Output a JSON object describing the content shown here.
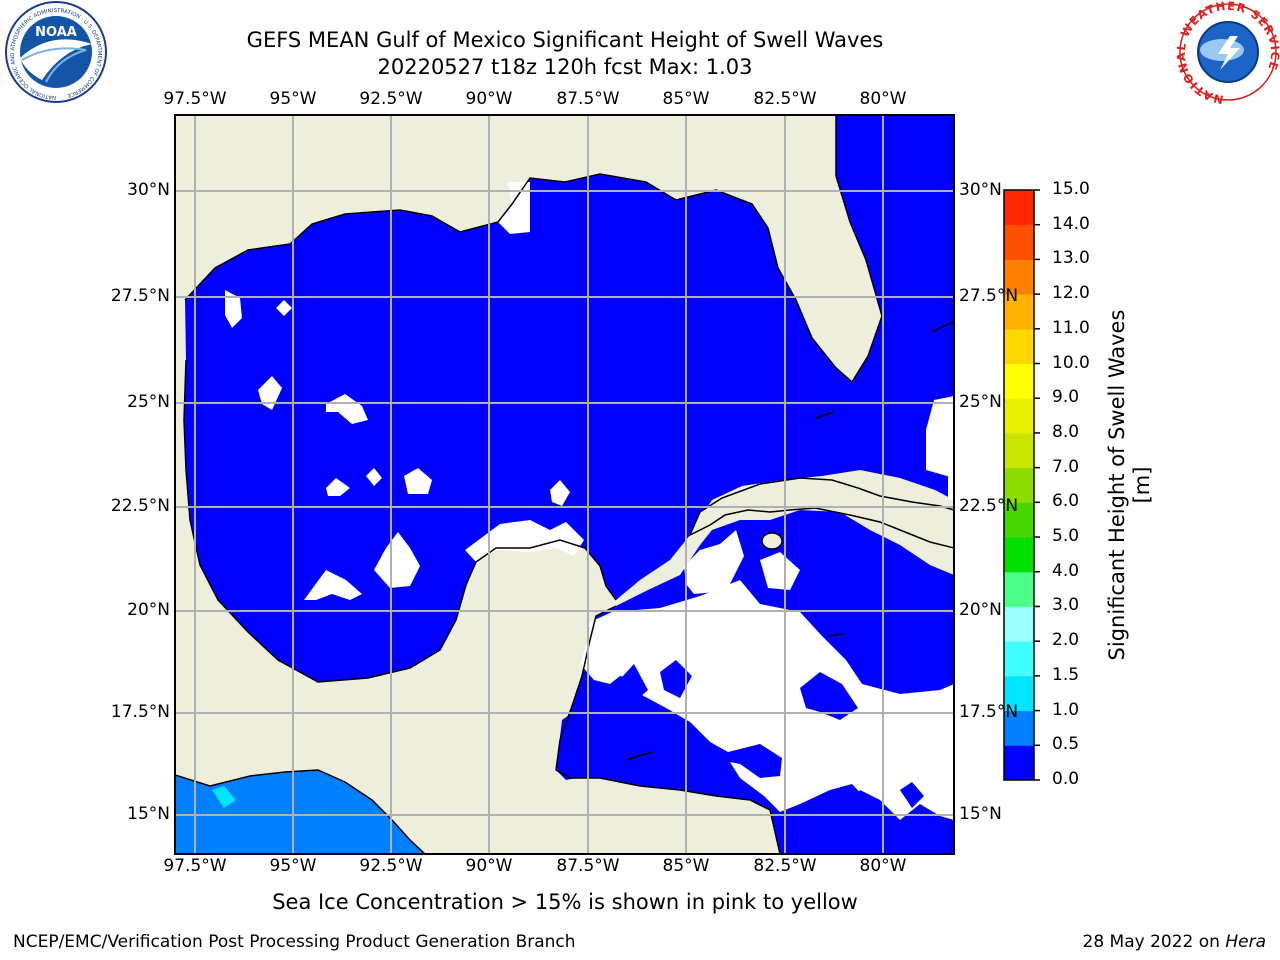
{
  "header": {
    "title_line1": "GEFS MEAN Gulf of Mexico Significant Height of Swell Waves",
    "title_line2": "20220527 t18z 120h fcst   Max: 1.03"
  },
  "map": {
    "lon_ticks": [
      "97.5°W",
      "95°W",
      "92.5°W",
      "90°W",
      "87.5°W",
      "85°W",
      "82.5°W",
      "80°W"
    ],
    "lat_ticks": [
      "30°N",
      "27.5°N",
      "25°N",
      "22.5°N",
      "20°N",
      "17.5°N",
      "15°N"
    ],
    "colors": {
      "land": "#eeeedc",
      "ocean": "#0000ff",
      "grid": "#b0b0b0",
      "no_data": "#ffffff",
      "pacific": "#0080ff"
    }
  },
  "colorbar": {
    "label": "Significant Height of Swell Waves [m]",
    "ticks": [
      "0.0",
      "0.5",
      "1.0",
      "1.5",
      "2.0",
      "3.0",
      "4.0",
      "5.0",
      "6.0",
      "7.0",
      "8.0",
      "9.0",
      "10.0",
      "11.0",
      "12.0",
      "13.0",
      "14.0",
      "15.0"
    ],
    "colors": [
      "#0000ff",
      "#0080ff",
      "#00e5ff",
      "#40ffff",
      "#9affff",
      "#4dff88",
      "#00e000",
      "#44d800",
      "#8cdc00",
      "#c8e600",
      "#e8f000",
      "#ffff00",
      "#ffd800",
      "#ffb000",
      "#ff8000",
      "#ff5000",
      "#ff2800"
    ]
  },
  "note": "Sea Ice Concentration > 15% is shown in pink to yellow",
  "footer": {
    "left": "NCEP/EMC/Verification Post Processing Product Generation Branch",
    "right_date": "28 May 2022 on",
    "right_host": "Hera"
  },
  "logos": {
    "noaa_text": "NOAA",
    "noaa_ring": "NATIONAL OCEANIC AND ATMOSPHERIC ADMINISTRATION · U.S. DEPARTMENT OF COMMERCE",
    "nws_ring": "NATIONAL WEATHER SERVICE"
  }
}
